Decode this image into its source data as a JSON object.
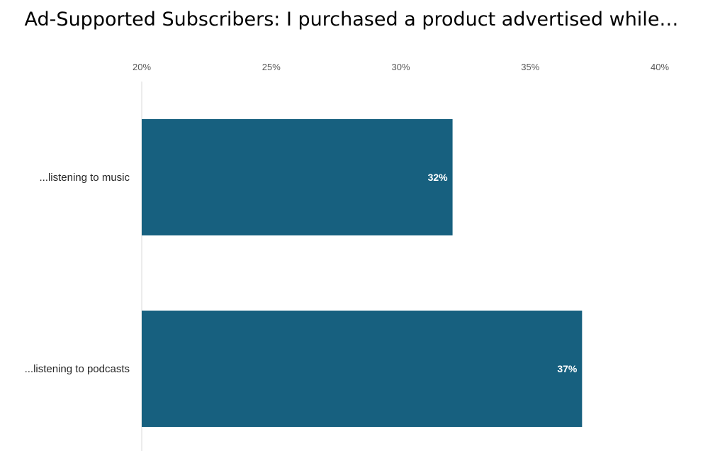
{
  "chart_data": {
    "type": "bar",
    "orientation": "horizontal",
    "title": "Ad-Supported Subscribers: I purchased a product advertised while…",
    "categories": [
      "...listening to music",
      "...listening to podcasts"
    ],
    "values": [
      32,
      37
    ],
    "data_labels": [
      "32%",
      "37%"
    ],
    "x_ticks": [
      "20%",
      "25%",
      "30%",
      "35%",
      "40%"
    ],
    "xlim": [
      20,
      40
    ],
    "x_axis_position": "top",
    "grid": false,
    "legend": "none",
    "bar_color": "#17607f"
  }
}
